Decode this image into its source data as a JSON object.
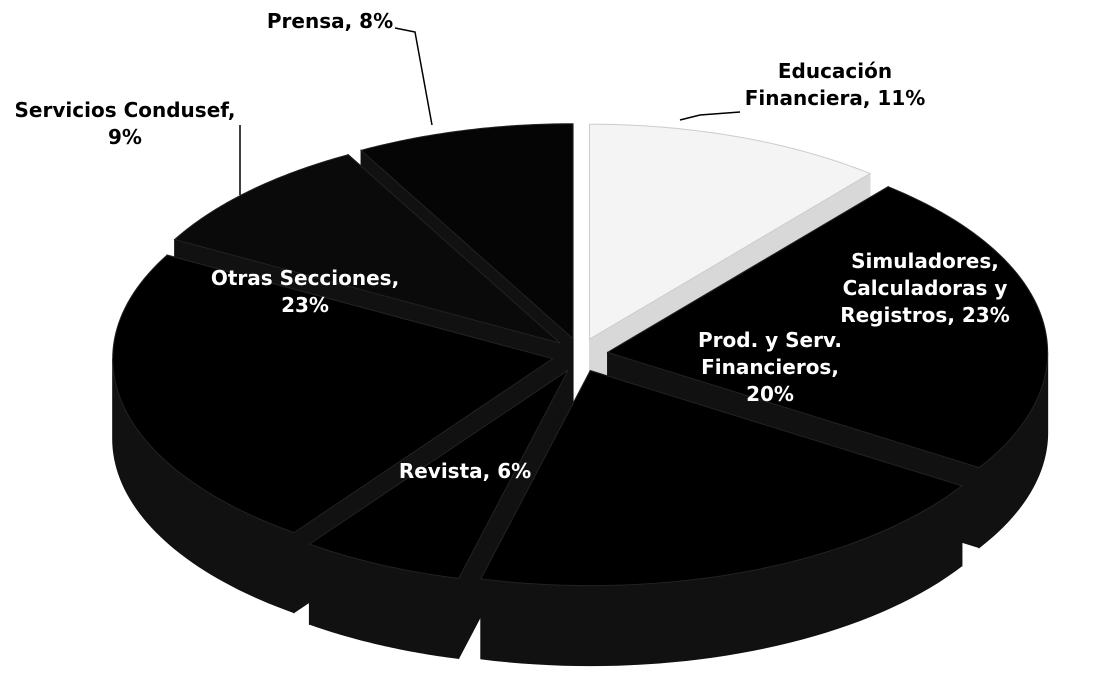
{
  "chart_data": {
    "type": "pie3d",
    "value_labels": [
      "Educación Financiera, 11%",
      "Simuladores, Calculadoras y Registros, 23%",
      "Prod. y Serv. Financieros, 20%",
      "Revista, 6%",
      "Otras Secciones, 23%",
      "Servicios Condusef, 9%",
      "Prensa, 8%"
    ],
    "values": [
      11,
      23,
      20,
      6,
      23,
      9,
      8
    ],
    "colors": [
      "#f4f4f4",
      "#000000",
      "#000000",
      "#000000",
      "#000000",
      "#0a0a0a",
      "#050505"
    ]
  }
}
